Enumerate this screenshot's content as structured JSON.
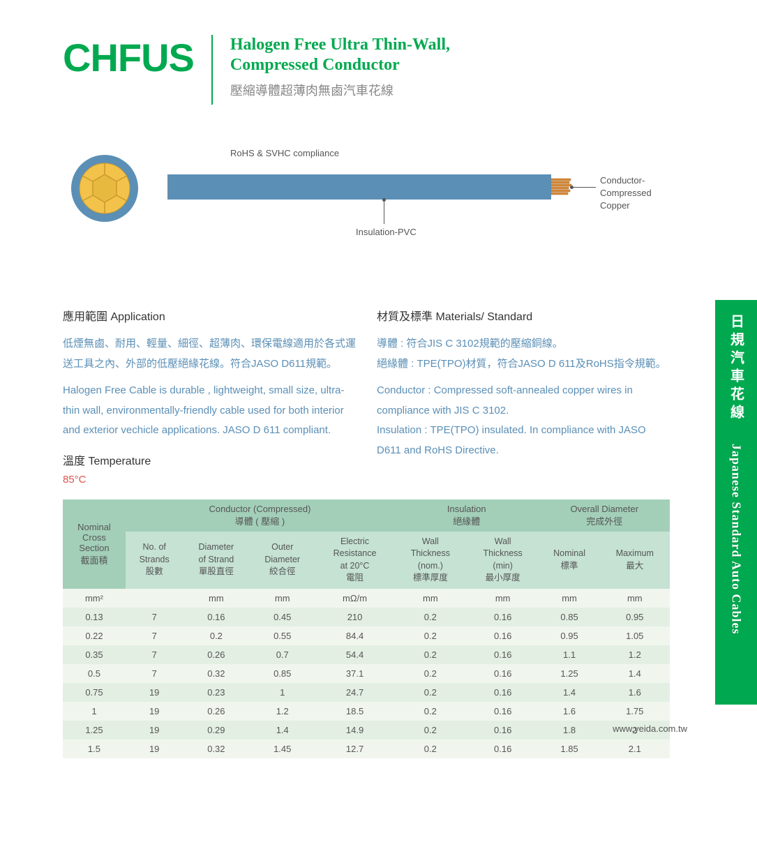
{
  "header": {
    "code": "CHFUS",
    "title_en": "Halogen Free  Ultra Thin-Wall,\nCompressed Conductor",
    "title_cn": "壓縮導體超薄肉無鹵汽車花線"
  },
  "side_tab": {
    "cn": "日規汽車花線",
    "en": "Japanese Standard Auto Cables"
  },
  "diagram": {
    "compliance": "RoHS & SVHC compliance",
    "insulation_label": "Insulation-PVC",
    "conductor_label_1": "Conductor-Compressed",
    "conductor_label_2": "Copper",
    "colors": {
      "jacket": "#5b8fb6",
      "copper": "#d68a3c",
      "xsec_fill": "#f2c24b",
      "xsec_ring": "#5b8fb6"
    }
  },
  "sections": {
    "application": {
      "title": "應用範圍 Application",
      "cn": "低煙無鹵、耐用、輕量、細徑、超薄肉、環保電線適用於各式運送工具之內、外部的低壓絕緣花線。符合JASO D611規範。",
      "en": "Halogen Free Cable is durable , lightweight, small size, ultra-thin wall, environmentally-friendly cable used for both interior and exterior vechicle applications. JASO D 611 compliant."
    },
    "materials": {
      "title": "材質及標準 Materials/ Standard",
      "cn": "導體 : 符合JIS C 3102規範的壓縮銅線。\n絕緣體 : TPE(TPO)材質，符合JASO D 611及RoHS指令規範。",
      "en": "Conductor : Compressed soft-annealed copper wires in compliance with JIS C 3102.\nInsulation : TPE(TPO) insulated. In compliance with JASO D611 and RoHS Directive."
    },
    "temperature": {
      "title": "溫度 Temperature",
      "value": "85°C"
    }
  },
  "table": {
    "groups": {
      "cross": "Nominal\nCross\nSection\n截面積",
      "conductor": "Conductor (Compressed)\n導體 ( 壓縮 )",
      "insulation": "Insulation\n絕緣體",
      "overall": "Overall Diameter\n完成外徑"
    },
    "cols": {
      "strands": "No. of\nStrands\n股數",
      "dstrand": "Diameter\nof  Strand\n單股直徑",
      "outer": "Outer\nDiameter\n絞合徑",
      "resist": "Electric\nResistance\nat 20°C\n電阻",
      "wallnom": "Wall\nThickness\n(nom.)\n標準厚度",
      "wallmin": "Wall\nThickness\n(min)\n最小厚度",
      "nom": "Nominal\n標準",
      "max": "Maximum\n最大"
    },
    "units": [
      "mm²",
      "",
      "mm",
      "mm",
      "mΩ/m",
      "mm",
      "mm",
      "mm",
      "mm"
    ],
    "rows": [
      [
        "0.13",
        "7",
        "0.16",
        "0.45",
        "210",
        "0.2",
        "0.16",
        "0.85",
        "0.95"
      ],
      [
        "0.22",
        "7",
        "0.2",
        "0.55",
        "84.4",
        "0.2",
        "0.16",
        "0.95",
        "1.05"
      ],
      [
        "0.35",
        "7",
        "0.26",
        "0.7",
        "54.4",
        "0.2",
        "0.16",
        "1.1",
        "1.2"
      ],
      [
        "0.5",
        "7",
        "0.32",
        "0.85",
        "37.1",
        "0.2",
        "0.16",
        "1.25",
        "1.4"
      ],
      [
        "0.75",
        "19",
        "0.23",
        "1",
        "24.7",
        "0.2",
        "0.16",
        "1.4",
        "1.6"
      ],
      [
        "1",
        "19",
        "0.26",
        "1.2",
        "18.5",
        "0.2",
        "0.16",
        "1.6",
        "1.75"
      ],
      [
        "1.25",
        "19",
        "0.29",
        "1.4",
        "14.9",
        "0.2",
        "0.16",
        "1.8",
        "2"
      ],
      [
        "1.5",
        "19",
        "0.32",
        "1.45",
        "12.7",
        "0.2",
        "0.16",
        "1.85",
        "2.1"
      ]
    ]
  },
  "footer": {
    "url": "www.yeida.com.tw"
  }
}
